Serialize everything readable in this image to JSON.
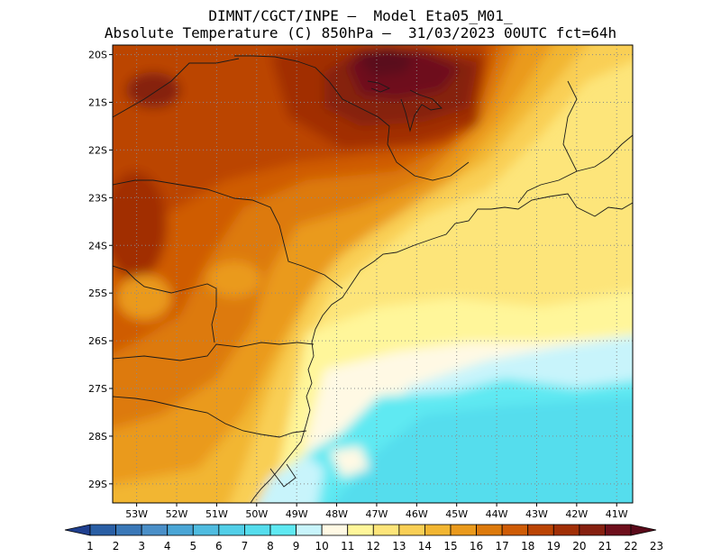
{
  "header": {
    "line1": "DIMNT/CGCT/INPE –  Model Eta05_M01_",
    "line2": "Absolute Temperature (C) 850hPa –  31/03/2023 00UTC fct=64h"
  },
  "map": {
    "lat_labels": [
      "20S",
      "21S",
      "22S",
      "23S",
      "24S",
      "25S",
      "26S",
      "27S",
      "28S",
      "29S"
    ],
    "lon_labels": [
      "53W",
      "52W",
      "51W",
      "50W",
      "49W",
      "48W",
      "47W",
      "46W",
      "45W",
      "44W",
      "43W",
      "42W",
      "41W"
    ],
    "lat_range": [
      -29.4,
      -19.8
    ],
    "lon_range": [
      -53.6,
      -40.6
    ]
  },
  "colorbar": {
    "labels": [
      "1",
      "2",
      "3",
      "4",
      "5",
      "6",
      "7",
      "8",
      "9",
      "10",
      "11",
      "12",
      "13",
      "14",
      "15",
      "16",
      "17",
      "18",
      "19",
      "20",
      "21",
      "22",
      "23"
    ],
    "colors": [
      "#1f3f8f",
      "#2a5fa5",
      "#3a78b8",
      "#4a8fc8",
      "#4aa6d6",
      "#4fbce0",
      "#52cfe8",
      "#55dded",
      "#5fe9f2",
      "#c8f4fb",
      "#fff9e4",
      "#fff69a",
      "#fde57a",
      "#f9cf55",
      "#f2b632",
      "#ea9a1c",
      "#dd7a0c",
      "#cf5c06",
      "#bb4404",
      "#a12f06",
      "#862010",
      "#6e0f1c",
      "#5a0a1a"
    ]
  }
}
